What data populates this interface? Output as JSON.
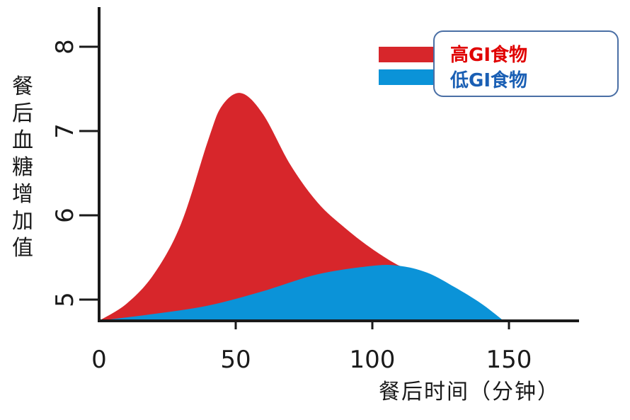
{
  "chart_data": {
    "type": "area",
    "xlabel": "餐后时间（分钟）",
    "ylabel": "餐后血糖增加值",
    "xlim": [
      0,
      175
    ],
    "ylim": [
      4.72,
      8.5
    ],
    "x_ticks": [
      "0",
      "50",
      "100",
      "150"
    ],
    "y_ticks": [
      "5",
      "6",
      "7",
      "8"
    ],
    "legend_position": "top-right",
    "series": [
      {
        "name": "高GI食物",
        "color": "#d7262b",
        "x": [
          0,
          10,
          20,
          30,
          40,
          45,
          52,
          60,
          70,
          80,
          90,
          100,
          110,
          115
        ],
        "y": [
          4.75,
          4.95,
          5.3,
          5.9,
          6.9,
          7.3,
          7.45,
          7.2,
          6.6,
          6.15,
          5.85,
          5.6,
          5.4,
          5.37
        ]
      },
      {
        "name": "低GI食物",
        "color": "#0b93d8",
        "x": [
          0,
          20,
          40,
          60,
          80,
          100,
          110,
          120,
          130,
          140,
          148
        ],
        "y": [
          4.75,
          4.83,
          4.93,
          5.1,
          5.3,
          5.4,
          5.4,
          5.32,
          5.15,
          4.95,
          4.75
        ]
      }
    ]
  }
}
